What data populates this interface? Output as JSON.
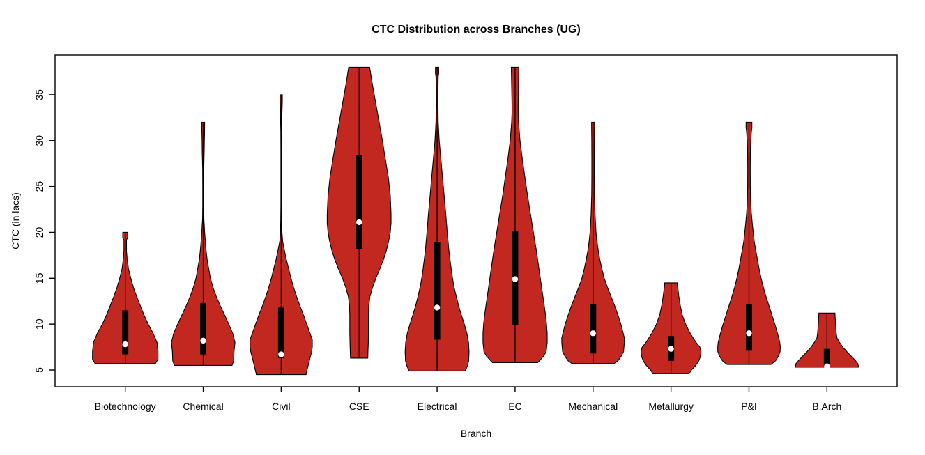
{
  "chart_data": {
    "type": "violin",
    "title": "CTC Distribution across Branches (UG)",
    "xlabel": "Branch",
    "ylabel": "CTC (in lacs)",
    "y_ticks": [
      5,
      10,
      15,
      20,
      25,
      30,
      35
    ],
    "y_axis_range_approx": [
      3.2,
      39.3
    ],
    "grid": false,
    "legend": "none",
    "fill_color": "#C22820",
    "outline_color": "#000000",
    "box_color": "#000000",
    "median_dot_color": "#ffffff",
    "categories": [
      "Biotechnology",
      "Chemical",
      "Civil",
      "CSE",
      "Electrical",
      "EC",
      "Mechanical",
      "Metallurgy",
      "P&I",
      "B.Arch"
    ],
    "series": [
      {
        "name": "Biotechnology",
        "min": 5.7,
        "max": 20,
        "q1": 6.7,
        "q3": 11.5,
        "median": 7.8,
        "profile": [
          [
            20,
            0.075
          ],
          [
            19.4,
            0.075
          ],
          [
            19.2,
            0.04
          ],
          [
            18,
            0.04
          ],
          [
            17,
            0.06
          ],
          [
            16,
            0.1
          ],
          [
            15,
            0.17
          ],
          [
            14,
            0.25
          ],
          [
            13,
            0.35
          ],
          [
            12,
            0.46
          ],
          [
            11,
            0.57
          ],
          [
            10,
            0.7
          ],
          [
            9,
            0.85
          ],
          [
            8,
            0.97
          ],
          [
            7,
            1.0
          ],
          [
            6.2,
            1.0
          ],
          [
            5.7,
            0.92
          ]
        ]
      },
      {
        "name": "Chemical",
        "min": 5.5,
        "max": 32,
        "q1": 6.7,
        "q3": 12.3,
        "median": 8.2,
        "profile": [
          [
            32,
            0.045
          ],
          [
            31.5,
            0.045
          ],
          [
            30,
            0.035
          ],
          [
            28.7,
            0.03
          ],
          [
            27,
            0.018
          ],
          [
            25,
            0.015
          ],
          [
            23,
            0.015
          ],
          [
            21.5,
            0.02
          ],
          [
            20,
            0.045
          ],
          [
            19,
            0.065
          ],
          [
            18,
            0.09
          ],
          [
            17,
            0.12
          ],
          [
            16,
            0.17
          ],
          [
            15,
            0.22
          ],
          [
            14,
            0.3
          ],
          [
            13,
            0.4
          ],
          [
            12,
            0.52
          ],
          [
            11,
            0.65
          ],
          [
            10,
            0.78
          ],
          [
            9,
            0.9
          ],
          [
            8,
            0.97
          ],
          [
            7,
            0.94
          ],
          [
            6,
            0.93
          ],
          [
            5.5,
            0.88
          ]
        ]
      },
      {
        "name": "Civil",
        "min": 4.5,
        "max": 35,
        "q1": 6.3,
        "q3": 11.8,
        "median": 6.7,
        "profile": [
          [
            35,
            0.035
          ],
          [
            34.3,
            0.035
          ],
          [
            33,
            0.025
          ],
          [
            32.4,
            0.02
          ],
          [
            31,
            0.012
          ],
          [
            29,
            0.01
          ],
          [
            27,
            0.01
          ],
          [
            25,
            0.01
          ],
          [
            23,
            0.01
          ],
          [
            21.3,
            0.015
          ],
          [
            20,
            0.025
          ],
          [
            19,
            0.045
          ],
          [
            18,
            0.1
          ],
          [
            17,
            0.16
          ],
          [
            16,
            0.23
          ],
          [
            15,
            0.3
          ],
          [
            14,
            0.38
          ],
          [
            13,
            0.47
          ],
          [
            12,
            0.57
          ],
          [
            11,
            0.68
          ],
          [
            10,
            0.78
          ],
          [
            9,
            0.88
          ],
          [
            8.3,
            0.95
          ],
          [
            7.5,
            0.95
          ],
          [
            7,
            0.93
          ],
          [
            6,
            0.86
          ],
          [
            5,
            0.79
          ],
          [
            4.5,
            0.76
          ]
        ]
      },
      {
        "name": "CSE",
        "min": 6.3,
        "max": 38,
        "q1": 18.2,
        "q3": 28.4,
        "median": 21.1,
        "profile": [
          [
            38,
            0.32
          ],
          [
            36,
            0.41
          ],
          [
            34,
            0.51
          ],
          [
            32,
            0.61
          ],
          [
            30,
            0.71
          ],
          [
            28,
            0.8
          ],
          [
            26,
            0.89
          ],
          [
            24,
            0.95
          ],
          [
            22,
            0.975
          ],
          [
            21,
            0.975
          ],
          [
            20,
            0.95
          ],
          [
            19,
            0.9
          ],
          [
            18,
            0.83
          ],
          [
            17,
            0.74
          ],
          [
            16,
            0.63
          ],
          [
            15,
            0.51
          ],
          [
            14,
            0.41
          ],
          [
            13,
            0.33
          ],
          [
            12,
            0.295
          ],
          [
            11,
            0.285
          ],
          [
            10,
            0.285
          ],
          [
            9,
            0.285
          ],
          [
            8,
            0.28
          ],
          [
            7,
            0.27
          ],
          [
            6.3,
            0.265
          ]
        ]
      },
      {
        "name": "Electrical",
        "min": 4.9,
        "max": 38,
        "q1": 8.3,
        "q3": 18.9,
        "median": 11.8,
        "profile": [
          [
            38,
            0.05
          ],
          [
            37.3,
            0.05
          ],
          [
            37,
            0.035
          ],
          [
            36,
            0.03
          ],
          [
            34,
            0.028
          ],
          [
            32,
            0.035
          ],
          [
            30,
            0.065
          ],
          [
            28,
            0.115
          ],
          [
            26,
            0.165
          ],
          [
            24,
            0.215
          ],
          [
            22,
            0.265
          ],
          [
            20,
            0.31
          ],
          [
            18,
            0.36
          ],
          [
            16,
            0.43
          ],
          [
            15,
            0.47
          ],
          [
            14,
            0.52
          ],
          [
            13,
            0.585
          ],
          [
            12,
            0.655
          ],
          [
            11,
            0.74
          ],
          [
            10,
            0.83
          ],
          [
            9,
            0.91
          ],
          [
            8,
            0.96
          ],
          [
            7,
            0.975
          ],
          [
            6,
            0.965
          ],
          [
            5.5,
            0.93
          ],
          [
            4.9,
            0.86
          ]
        ]
      },
      {
        "name": "EC",
        "min": 5.8,
        "max": 38,
        "q1": 9.9,
        "q3": 20.1,
        "median": 14.9,
        "profile": [
          [
            38,
            0.115
          ],
          [
            36,
            0.105
          ],
          [
            34,
            0.095
          ],
          [
            33,
            0.095
          ],
          [
            32,
            0.105
          ],
          [
            30,
            0.15
          ],
          [
            28,
            0.22
          ],
          [
            26,
            0.3
          ],
          [
            24,
            0.38
          ],
          [
            22,
            0.47
          ],
          [
            20,
            0.56
          ],
          [
            18,
            0.65
          ],
          [
            16,
            0.73
          ],
          [
            14,
            0.81
          ],
          [
            12,
            0.89
          ],
          [
            11,
            0.93
          ],
          [
            10,
            0.96
          ],
          [
            9,
            0.98
          ],
          [
            8,
            0.98
          ],
          [
            7,
            0.95
          ],
          [
            6.5,
            0.87
          ],
          [
            5.8,
            0.69
          ]
        ]
      },
      {
        "name": "Mechanical",
        "min": 5.7,
        "max": 32,
        "q1": 6.8,
        "q3": 12.2,
        "median": 9.0,
        "profile": [
          [
            32,
            0.045
          ],
          [
            31.4,
            0.045
          ],
          [
            30,
            0.04
          ],
          [
            28,
            0.038
          ],
          [
            26,
            0.038
          ],
          [
            24,
            0.042
          ],
          [
            23,
            0.05
          ],
          [
            22,
            0.06
          ],
          [
            21,
            0.075
          ],
          [
            20,
            0.09
          ],
          [
            19,
            0.12
          ],
          [
            18,
            0.16
          ],
          [
            17,
            0.21
          ],
          [
            16,
            0.27
          ],
          [
            15,
            0.34
          ],
          [
            14,
            0.44
          ],
          [
            13,
            0.55
          ],
          [
            12,
            0.66
          ],
          [
            11,
            0.76
          ],
          [
            10,
            0.85
          ],
          [
            9,
            0.92
          ],
          [
            8.5,
            0.955
          ],
          [
            8,
            0.955
          ],
          [
            7,
            0.93
          ],
          [
            6.5,
            0.86
          ],
          [
            6,
            0.76
          ],
          [
            5.7,
            0.64
          ]
        ]
      },
      {
        "name": "Metallurgy",
        "min": 4.6,
        "max": 14.5,
        "q1": 6.0,
        "q3": 8.7,
        "median": 7.3,
        "profile": [
          [
            14.5,
            0.19
          ],
          [
            14,
            0.205
          ],
          [
            13,
            0.24
          ],
          [
            12,
            0.285
          ],
          [
            11,
            0.345
          ],
          [
            10,
            0.445
          ],
          [
            9,
            0.585
          ],
          [
            8,
            0.765
          ],
          [
            7.5,
            0.88
          ],
          [
            7,
            0.915
          ],
          [
            6.5,
            0.9
          ],
          [
            6,
            0.85
          ],
          [
            5.5,
            0.755
          ],
          [
            5,
            0.625
          ],
          [
            4.6,
            0.555
          ]
        ]
      },
      {
        "name": "P&I",
        "min": 5.6,
        "max": 32,
        "q1": 7.1,
        "q3": 12.2,
        "median": 9.0,
        "profile": [
          [
            32,
            0.09
          ],
          [
            31.4,
            0.09
          ],
          [
            31,
            0.075
          ],
          [
            30,
            0.055
          ],
          [
            29,
            0.042
          ],
          [
            27,
            0.038
          ],
          [
            25,
            0.04
          ],
          [
            23,
            0.055
          ],
          [
            22,
            0.075
          ],
          [
            21,
            0.1
          ],
          [
            20,
            0.13
          ],
          [
            19,
            0.16
          ],
          [
            18,
            0.21
          ],
          [
            17,
            0.26
          ],
          [
            16,
            0.31
          ],
          [
            15,
            0.37
          ],
          [
            14,
            0.44
          ],
          [
            13,
            0.52
          ],
          [
            12,
            0.61
          ],
          [
            11,
            0.7
          ],
          [
            10,
            0.79
          ],
          [
            9,
            0.87
          ],
          [
            8,
            0.94
          ],
          [
            7.5,
            0.955
          ],
          [
            7,
            0.95
          ],
          [
            6.5,
            0.9
          ],
          [
            6,
            0.81
          ],
          [
            5.6,
            0.67
          ]
        ]
      },
      {
        "name": "B.Arch",
        "min": 5.3,
        "max": 11.2,
        "q1": 5.4,
        "q3": 7.3,
        "median": 5.4,
        "profile": [
          [
            11.2,
            0.245
          ],
          [
            10.5,
            0.255
          ],
          [
            10,
            0.265
          ],
          [
            9.5,
            0.275
          ],
          [
            9,
            0.285
          ],
          [
            8.5,
            0.305
          ],
          [
            8,
            0.385
          ],
          [
            7.5,
            0.485
          ],
          [
            7,
            0.61
          ],
          [
            6.5,
            0.745
          ],
          [
            6,
            0.875
          ],
          [
            5.7,
            0.945
          ],
          [
            5.3,
            0.965
          ]
        ]
      }
    ]
  }
}
